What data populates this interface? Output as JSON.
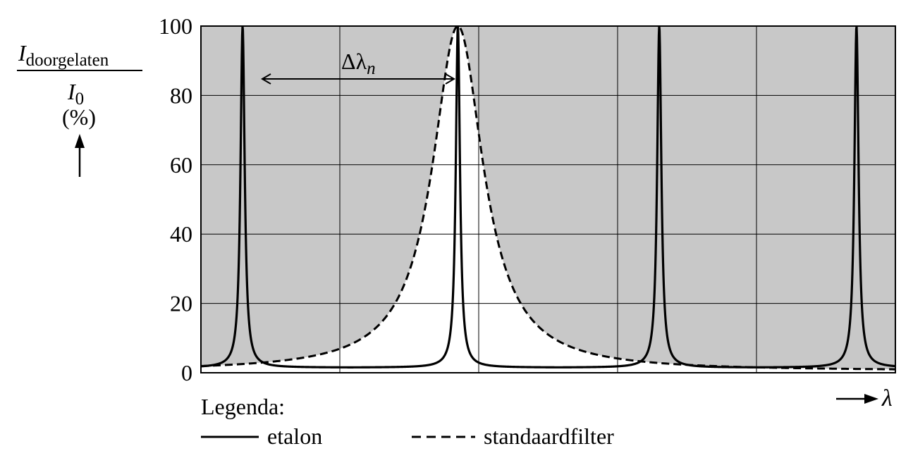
{
  "chart_data": {
    "type": "line",
    "ylim": [
      0,
      100
    ],
    "yticks": [
      "0",
      "20",
      "40",
      "60",
      "80",
      "100"
    ],
    "y_label": {
      "main": "I",
      "main_sub": "doorgelaten",
      "denominator": "I",
      "denominator_sub": "0",
      "unit": "(%)"
    },
    "x_label": "λ",
    "grid": true,
    "legend": {
      "title": "Legenda:",
      "placement": "bottom-left",
      "entries": [
        {
          "label": "etalon",
          "style": "solid"
        },
        {
          "label": "standaardfilter",
          "style": "dashed"
        }
      ]
    },
    "annotation": {
      "symbol": "Δλ",
      "subscript": "n"
    },
    "series": [
      {
        "name": "etalon",
        "style": "solid",
        "peaks_at_grid_fraction": [
          0.3,
          1.85,
          3.3,
          4.72
        ],
        "peak_value": 100,
        "baseline_value": 1.5
      },
      {
        "name": "standaardfilter",
        "style": "dashed",
        "peak_at_grid_fraction": 1.85,
        "peak_value": 100,
        "edge_value": 0.5
      }
    ]
  }
}
